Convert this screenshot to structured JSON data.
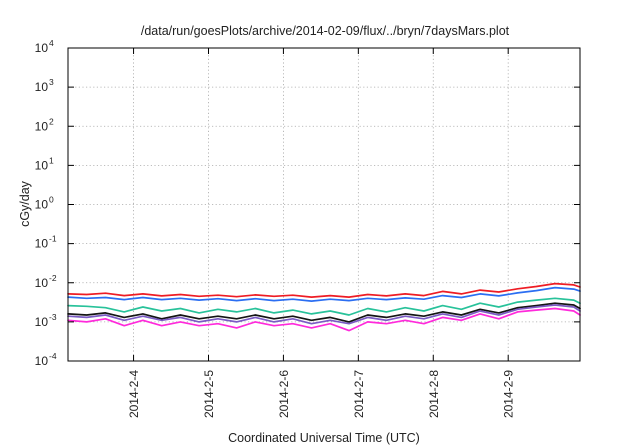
{
  "chart_data": {
    "type": "line",
    "title": "/data/run/goesPlots/archive/2014-02-09/flux/../bryn/7daysMars.plot",
    "xlabel": "Coordinated Universal Time (UTC)",
    "ylabel": "cGy/day",
    "yscale": "log",
    "ylim": [
      0.0001,
      10000
    ],
    "xlim": [
      "2014-02-03T03:00",
      "2014-02-09T23:00"
    ],
    "grid": true,
    "legend": "none",
    "y_ticks": [
      {
        "base": "10",
        "exp": "-4",
        "value": 0.0001
      },
      {
        "base": "10",
        "exp": "-3",
        "value": 0.001
      },
      {
        "base": "10",
        "exp": "-2",
        "value": 0.01
      },
      {
        "base": "10",
        "exp": "-1",
        "value": 0.1
      },
      {
        "base": "10",
        "exp": "0",
        "value": 1
      },
      {
        "base": "10",
        "exp": "1",
        "value": 10
      },
      {
        "base": "10",
        "exp": "2",
        "value": 100
      },
      {
        "base": "10",
        "exp": "3",
        "value": 1000
      },
      {
        "base": "10",
        "exp": "4",
        "value": 10000
      }
    ],
    "x_ticks": [
      {
        "label": "2014-2-4",
        "value": "2014-02-04T00:00"
      },
      {
        "label": "2014-2-5",
        "value": "2014-02-05T00:00"
      },
      {
        "label": "2014-2-6",
        "value": "2014-02-06T00:00"
      },
      {
        "label": "2014-2-7",
        "value": "2014-02-07T00:00"
      },
      {
        "label": "2014-2-8",
        "value": "2014-02-08T00:00"
      },
      {
        "label": "2014-2-9",
        "value": "2014-02-09T00:00"
      }
    ],
    "x": [
      "2014-02-03T03:00",
      "2014-02-03T09:00",
      "2014-02-03T15:00",
      "2014-02-03T21:00",
      "2014-02-04T03:00",
      "2014-02-04T09:00",
      "2014-02-04T15:00",
      "2014-02-04T21:00",
      "2014-02-05T03:00",
      "2014-02-05T09:00",
      "2014-02-05T15:00",
      "2014-02-05T21:00",
      "2014-02-06T03:00",
      "2014-02-06T09:00",
      "2014-02-06T15:00",
      "2014-02-06T21:00",
      "2014-02-07T03:00",
      "2014-02-07T09:00",
      "2014-02-07T15:00",
      "2014-02-07T21:00",
      "2014-02-08T03:00",
      "2014-02-08T09:00",
      "2014-02-08T15:00",
      "2014-02-08T21:00",
      "2014-02-09T03:00",
      "2014-02-09T09:00",
      "2014-02-09T15:00",
      "2014-02-09T21:00",
      "2014-02-09T23:00"
    ],
    "series": [
      {
        "color": "#ee1c24",
        "values": [
          0.0052,
          0.005,
          0.0054,
          0.0047,
          0.0052,
          0.0046,
          0.005,
          0.0045,
          0.0048,
          0.0044,
          0.0049,
          0.0045,
          0.0048,
          0.0043,
          0.0047,
          0.0043,
          0.005,
          0.0046,
          0.0052,
          0.0047,
          0.006,
          0.0052,
          0.0065,
          0.0058,
          0.007,
          0.008,
          0.0095,
          0.0088,
          0.0078
        ]
      },
      {
        "color": "#2b6ef2",
        "values": [
          0.0043,
          0.004,
          0.0042,
          0.0037,
          0.0042,
          0.0037,
          0.004,
          0.0036,
          0.0039,
          0.0035,
          0.0039,
          0.0035,
          0.0038,
          0.0034,
          0.0038,
          0.0035,
          0.004,
          0.0037,
          0.0041,
          0.0038,
          0.0047,
          0.0042,
          0.0052,
          0.0046,
          0.0055,
          0.0063,
          0.0075,
          0.0069,
          0.0061
        ]
      },
      {
        "color": "#28c29a",
        "values": [
          0.0026,
          0.0025,
          0.0023,
          0.0018,
          0.0024,
          0.0019,
          0.0022,
          0.0017,
          0.0021,
          0.0018,
          0.0022,
          0.0017,
          0.002,
          0.0016,
          0.0019,
          0.0015,
          0.0022,
          0.0018,
          0.0023,
          0.0019,
          0.0026,
          0.0021,
          0.003,
          0.0024,
          0.0032,
          0.0036,
          0.004,
          0.0036,
          0.003
        ]
      },
      {
        "color": "#141414",
        "values": [
          0.0016,
          0.0015,
          0.0017,
          0.0013,
          0.0016,
          0.0012,
          0.0015,
          0.0012,
          0.0014,
          0.0012,
          0.0015,
          0.0012,
          0.0014,
          0.0011,
          0.0013,
          0.001,
          0.0015,
          0.0013,
          0.0016,
          0.0014,
          0.0018,
          0.0015,
          0.0021,
          0.0017,
          0.0023,
          0.0026,
          0.003,
          0.0027,
          0.0022
        ]
      },
      {
        "color": "#7b5bc4",
        "values": [
          0.0014,
          0.0013,
          0.0015,
          0.0011,
          0.0014,
          0.0011,
          0.0013,
          0.001,
          0.0012,
          0.001,
          0.0013,
          0.001,
          0.0012,
          0.0009,
          0.0011,
          0.0009,
          0.0013,
          0.0011,
          0.0014,
          0.0012,
          0.0016,
          0.0013,
          0.0019,
          0.0015,
          0.0021,
          0.0024,
          0.0027,
          0.0024,
          0.0019
        ]
      },
      {
        "color": "#ff2adb",
        "values": [
          0.0011,
          0.001,
          0.0012,
          0.0008,
          0.0011,
          0.0008,
          0.001,
          0.0008,
          0.0009,
          0.0007,
          0.001,
          0.0008,
          0.0009,
          0.0007,
          0.0009,
          0.0006,
          0.001,
          0.0009,
          0.0011,
          0.0009,
          0.0013,
          0.0011,
          0.0016,
          0.0012,
          0.0018,
          0.002,
          0.0022,
          0.0019,
          0.0015
        ]
      }
    ]
  }
}
